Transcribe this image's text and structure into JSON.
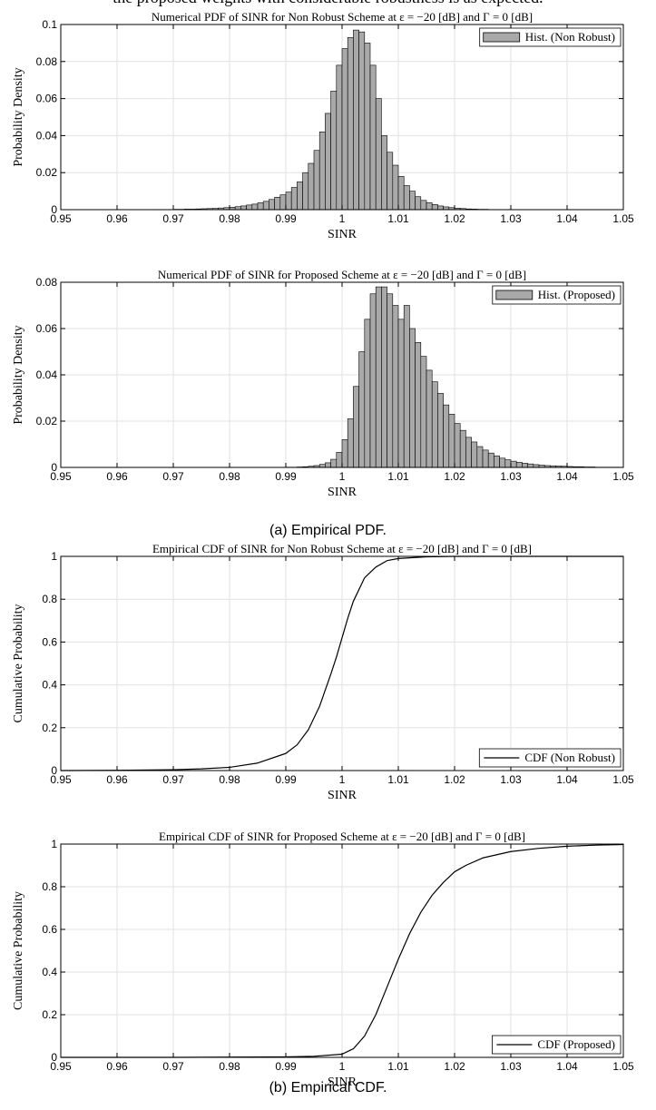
{
  "top_text": "the proposed weights with considerable robustness is as expected.",
  "captions": {
    "a": "(a) Empirical PDF.",
    "b": "(b) Empirical CDF."
  },
  "chart_data": [
    {
      "type": "bar",
      "title": "Numerical PDF of SINR for Non Robust Scheme at ε = −20 [dB] and Γ = 0 [dB]",
      "xlabel": "SINR",
      "ylabel": "Probability Density",
      "xlim": [
        0.95,
        1.05
      ],
      "ylim": [
        0,
        0.1
      ],
      "xticks": [
        0.95,
        0.96,
        0.97,
        0.98,
        0.99,
        1,
        1.01,
        1.02,
        1.03,
        1.04,
        1.05
      ],
      "xtick_labels": [
        "0.95",
        "0.96",
        "0.97",
        "0.98",
        "0.99",
        "1",
        "1.01",
        "1.02",
        "1.03",
        "1.04",
        "1.05"
      ],
      "yticks": [
        0,
        0.02,
        0.04,
        0.06,
        0.08,
        0.1
      ],
      "ytick_labels": [
        "0",
        "0.02",
        "0.04",
        "0.06",
        "0.08",
        "0.1"
      ],
      "grid": true,
      "legend": {
        "label": "Hist. (Non Robust)",
        "position": "top-right"
      },
      "bin_edges": [
        0.95,
        1.05
      ],
      "bin_width": 0.001,
      "values": [
        0,
        0,
        0,
        0,
        0,
        0,
        0,
        0,
        0,
        0,
        0,
        0,
        0,
        0,
        0,
        0,
        0.0001,
        0.0001,
        0.0001,
        0.0001,
        0.0002,
        0.0002,
        0.0003,
        0.0003,
        0.0004,
        0.0005,
        0.0006,
        0.0007,
        0.0009,
        0.0011,
        0.0013,
        0.0016,
        0.002,
        0.0025,
        0.003,
        0.0037,
        0.0045,
        0.0055,
        0.0067,
        0.008,
        0.0095,
        0.012,
        0.015,
        0.02,
        0.025,
        0.032,
        0.042,
        0.052,
        0.064,
        0.078,
        0.087,
        0.093,
        0.097,
        0.096,
        0.09,
        0.078,
        0.06,
        0.04,
        0.031,
        0.024,
        0.018,
        0.013,
        0.01,
        0.007,
        0.005,
        0.0038,
        0.0028,
        0.002,
        0.0015,
        0.0011,
        0.0008,
        0.0006,
        0.0004,
        0.0003,
        0.0002,
        0.0002,
        0.0001,
        0.0001,
        0.0001,
        0,
        0,
        0,
        0,
        0,
        0,
        0,
        0,
        0,
        0,
        0,
        0,
        0,
        0,
        0,
        0,
        0,
        0,
        0,
        0,
        0
      ]
    },
    {
      "type": "bar",
      "title": "Numerical PDF of SINR for Proposed Scheme at ε = −20 [dB] and Γ = 0 [dB]",
      "xlabel": "SINR",
      "ylabel": "Probability Density",
      "xlim": [
        0.95,
        1.05
      ],
      "ylim": [
        0,
        0.08
      ],
      "xticks": [
        0.95,
        0.96,
        0.97,
        0.98,
        0.99,
        1,
        1.01,
        1.02,
        1.03,
        1.04,
        1.05
      ],
      "xtick_labels": [
        "0.95",
        "0.96",
        "0.97",
        "0.98",
        "0.99",
        "1",
        "1.01",
        "1.02",
        "1.03",
        "1.04",
        "1.05"
      ],
      "yticks": [
        0,
        0.02,
        0.04,
        0.06,
        0.08
      ],
      "ytick_labels": [
        "0",
        "0.02",
        "0.04",
        "0.06",
        "0.08"
      ],
      "grid": true,
      "legend": {
        "label": "Hist. (Proposed)",
        "position": "top-right"
      },
      "bin_edges": [
        0.95,
        1.05
      ],
      "bin_width": 0.001,
      "values": [
        0,
        0,
        0,
        0,
        0,
        0,
        0,
        0,
        0,
        0,
        0,
        0,
        0,
        0,
        0,
        0,
        0,
        0,
        0,
        0,
        0,
        0,
        0,
        0,
        0,
        0,
        0,
        0,
        0,
        0,
        0,
        0,
        0,
        0,
        0,
        0,
        0,
        0,
        0,
        0,
        0.0001,
        0.0001,
        0.0002,
        0.0003,
        0.0005,
        0.0008,
        0.0013,
        0.002,
        0.0035,
        0.0065,
        0.012,
        0.021,
        0.035,
        0.05,
        0.064,
        0.075,
        0.078,
        0.078,
        0.075,
        0.07,
        0.064,
        0.07,
        0.06,
        0.054,
        0.048,
        0.042,
        0.037,
        0.032,
        0.027,
        0.023,
        0.019,
        0.016,
        0.013,
        0.011,
        0.009,
        0.0075,
        0.0062,
        0.005,
        0.004,
        0.0033,
        0.0027,
        0.0022,
        0.0018,
        0.0015,
        0.0012,
        0.001,
        0.0008,
        0.0007,
        0.0006,
        0.0005,
        0.0004,
        0.0003,
        0.0003,
        0.0002,
        0.0002,
        0.0001,
        0.0001,
        0.0001,
        0.0001,
        0.0001
      ]
    },
    {
      "type": "line",
      "title": "Empirical CDF of SINR for Non Robust Scheme at ε = −20 [dB] and Γ = 0 [dB]",
      "xlabel": "SINR",
      "ylabel": "Cumulative Probability",
      "xlim": [
        0.95,
        1.05
      ],
      "ylim": [
        0,
        1
      ],
      "xticks": [
        0.95,
        0.96,
        0.97,
        0.98,
        0.99,
        1,
        1.01,
        1.02,
        1.03,
        1.04,
        1.05
      ],
      "xtick_labels": [
        "0.95",
        "0.96",
        "0.97",
        "0.98",
        "0.99",
        "1",
        "1.01",
        "1.02",
        "1.03",
        "1.04",
        "1.05"
      ],
      "yticks": [
        0,
        0.2,
        0.4,
        0.6,
        0.8,
        1
      ],
      "ytick_labels": [
        "0",
        "0.2",
        "0.4",
        "0.6",
        "0.8",
        "1"
      ],
      "grid": true,
      "legend": {
        "label": "CDF (Non Robust)",
        "position": "bottom-right"
      },
      "series": [
        {
          "name": "CDF (Non Robust)",
          "color": "#000000",
          "x": [
            0.95,
            0.96,
            0.97,
            0.975,
            0.98,
            0.985,
            0.99,
            0.992,
            0.994,
            0.996,
            0.998,
            0.999,
            1.0,
            1.001,
            1.002,
            1.004,
            1.006,
            1.008,
            1.01,
            1.015,
            1.02,
            1.03,
            1.04,
            1.05
          ],
          "y": [
            0,
            0.001,
            0.004,
            0.008,
            0.015,
            0.035,
            0.08,
            0.12,
            0.19,
            0.3,
            0.45,
            0.53,
            0.62,
            0.71,
            0.79,
            0.9,
            0.95,
            0.98,
            0.99,
            0.998,
            1,
            1,
            1,
            1
          ]
        }
      ]
    },
    {
      "type": "line",
      "title": "Empirical CDF of SINR for Proposed Scheme at ε = −20 [dB] and Γ = 0 [dB]",
      "xlabel": "SINR",
      "ylabel": "Cumulative Probability",
      "xlim": [
        0.95,
        1.05
      ],
      "ylim": [
        0,
        1
      ],
      "xticks": [
        0.95,
        0.96,
        0.97,
        0.98,
        0.99,
        1,
        1.01,
        1.02,
        1.03,
        1.04,
        1.05
      ],
      "xtick_labels": [
        "0.95",
        "0.96",
        "0.97",
        "0.98",
        "0.99",
        "1",
        "1.01",
        "1.02",
        "1.03",
        "1.04",
        "1.05"
      ],
      "yticks": [
        0,
        0.2,
        0.4,
        0.6,
        0.8,
        1
      ],
      "ytick_labels": [
        "0",
        "0.2",
        "0.4",
        "0.6",
        "0.8",
        "1"
      ],
      "grid": true,
      "legend": {
        "label": "CDF (Proposed)",
        "position": "bottom-right"
      },
      "series": [
        {
          "name": "CDF (Proposed)",
          "color": "#000000",
          "x": [
            0.95,
            0.97,
            0.99,
            0.995,
            1.0,
            1.002,
            1.004,
            1.006,
            1.008,
            1.01,
            1.012,
            1.014,
            1.016,
            1.018,
            1.02,
            1.022,
            1.025,
            1.03,
            1.035,
            1.04,
            1.045,
            1.05
          ],
          "y": [
            0,
            0,
            0.002,
            0.005,
            0.015,
            0.04,
            0.1,
            0.2,
            0.33,
            0.46,
            0.58,
            0.68,
            0.76,
            0.82,
            0.87,
            0.9,
            0.935,
            0.965,
            0.98,
            0.99,
            0.995,
            0.998
          ]
        }
      ]
    }
  ]
}
